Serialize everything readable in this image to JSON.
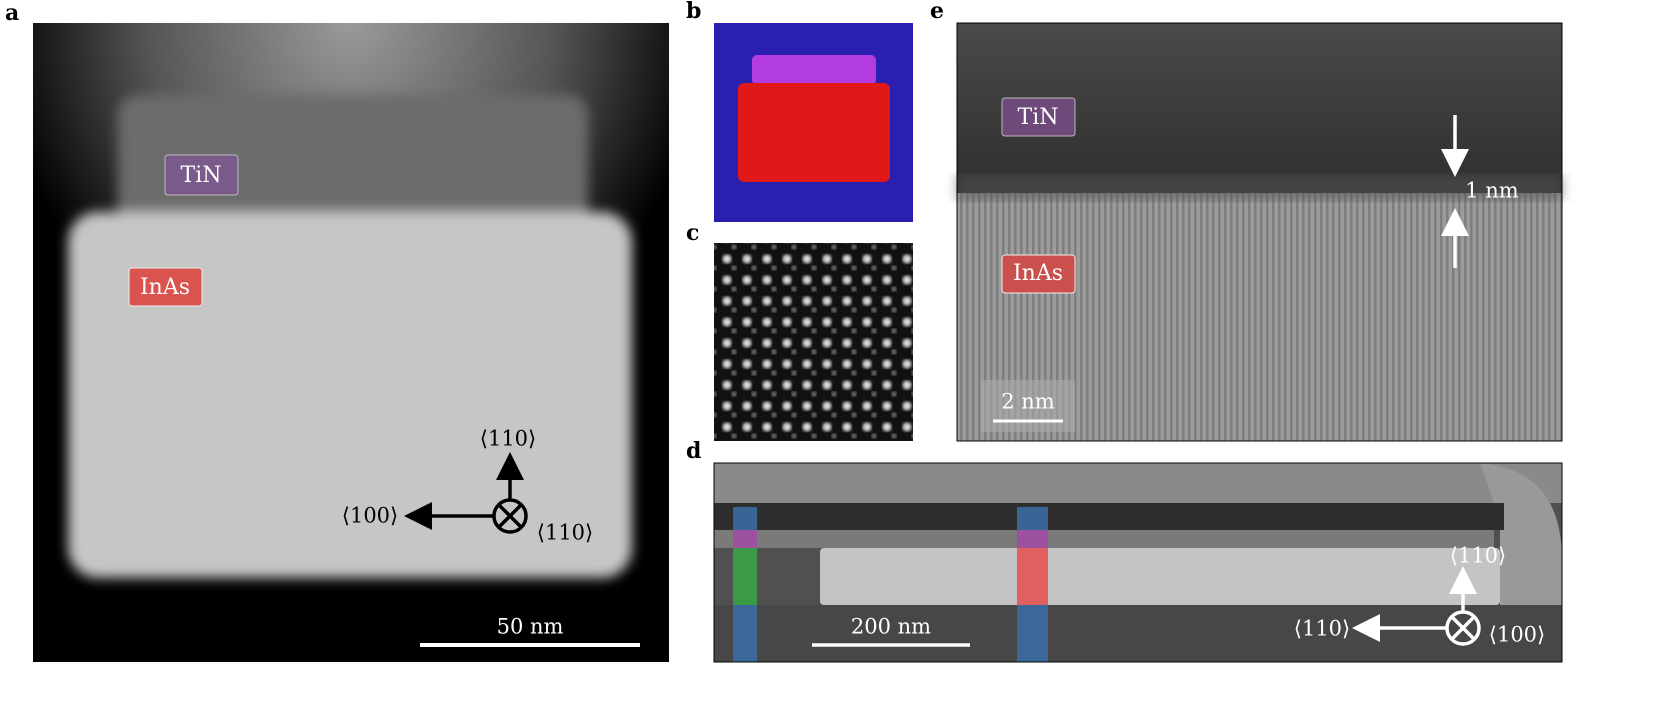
{
  "panel_a": {
    "label": "a",
    "tin": "TiN",
    "inas": "InAs",
    "dir_up": "⟨110⟩",
    "dir_left": "⟨100⟩",
    "dir_in": "⟨110⟩",
    "scale_bar": "50 nm"
  },
  "panel_b": {
    "label": "b"
  },
  "panel_c": {
    "label": "c"
  },
  "panel_d": {
    "label": "d",
    "dir_up": "⟨110⟩",
    "dir_left": "⟨110⟩",
    "dir_in": "⟨100⟩",
    "scale_bar": "200 nm"
  },
  "panel_e": {
    "label": "e",
    "tin": "TiN",
    "inas": "InAs",
    "interface": "1 nm",
    "scale_bar": "2 nm"
  }
}
